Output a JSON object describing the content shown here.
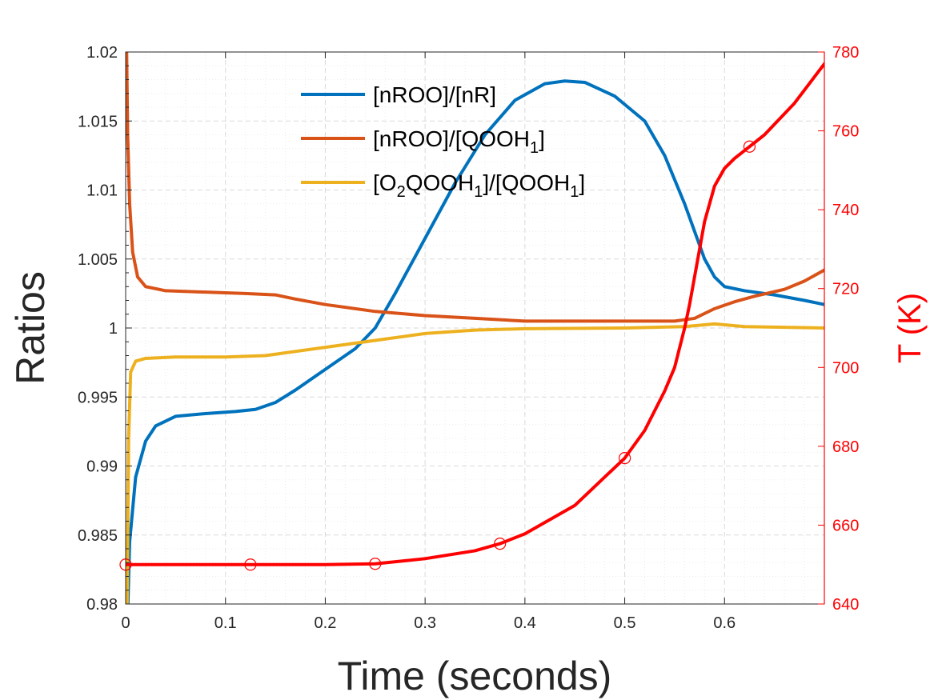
{
  "chart_data": {
    "type": "line",
    "title": "",
    "xlabel": "Time (seconds)",
    "ylabel": "Ratios",
    "ylabel_right": "T (K)",
    "xlim": [
      0,
      0.7
    ],
    "ylim": [
      0.98,
      1.02
    ],
    "ylim_right": [
      640,
      780
    ],
    "xticks": [
      "0",
      "0.1",
      "0.2",
      "0.3",
      "0.4",
      "0.5",
      "0.6"
    ],
    "yticks": [
      "0.98",
      "0.985",
      "0.99",
      "0.995",
      "1",
      "1.005",
      "1.01",
      "1.015",
      "1.02"
    ],
    "yticks_right": [
      "640",
      "660",
      "680",
      "700",
      "720",
      "740",
      "760",
      "780"
    ],
    "grid": true,
    "legend": {
      "placement": "top-center",
      "items": [
        {
          "base": "[nROO]/[nR]",
          "segments": [
            {
              "t": "[nROO]/[nR]",
              "s": false
            }
          ]
        },
        {
          "base": "[nROO]/[QOOH1]",
          "segments": [
            {
              "t": "[nROO]/[QOOH",
              "s": false
            },
            {
              "t": "1",
              "s": true
            },
            {
              "t": "]",
              "s": false
            }
          ]
        },
        {
          "base": "[O2QOOH1]/[QOOH1]",
          "segments": [
            {
              "t": "[O",
              "s": false
            },
            {
              "t": "2",
              "s": true
            },
            {
              "t": "QOOH",
              "s": false
            },
            {
              "t": "1",
              "s": true
            },
            {
              "t": "]/[QOOH",
              "s": false
            },
            {
              "t": "1",
              "s": true
            },
            {
              "t": "]",
              "s": false
            }
          ]
        }
      ]
    },
    "series": [
      {
        "name": "[nROO]/[nR]",
        "axis": "left",
        "color": "#0072BD",
        "points": [
          [
            0.0015,
            0.978
          ],
          [
            0.004,
            0.9845
          ],
          [
            0.01,
            0.9892
          ],
          [
            0.02,
            0.9918
          ],
          [
            0.03,
            0.9929
          ],
          [
            0.05,
            0.9936
          ],
          [
            0.08,
            0.9938
          ],
          [
            0.11,
            0.99395
          ],
          [
            0.13,
            0.9941
          ],
          [
            0.15,
            0.9946
          ],
          [
            0.17,
            0.9955
          ],
          [
            0.2,
            0.997
          ],
          [
            0.23,
            0.9985
          ],
          [
            0.25,
            1.0
          ],
          [
            0.27,
            1.0025
          ],
          [
            0.3,
            1.0065
          ],
          [
            0.33,
            1.0105
          ],
          [
            0.36,
            1.014
          ],
          [
            0.39,
            1.0165
          ],
          [
            0.42,
            1.0177
          ],
          [
            0.44,
            1.0179
          ],
          [
            0.46,
            1.0178
          ],
          [
            0.49,
            1.0168
          ],
          [
            0.52,
            1.015
          ],
          [
            0.54,
            1.0125
          ],
          [
            0.56,
            1.009
          ],
          [
            0.57,
            1.007
          ],
          [
            0.58,
            1.005
          ],
          [
            0.59,
            1.0037
          ],
          [
            0.6,
            1.003
          ],
          [
            0.62,
            1.0027
          ],
          [
            0.65,
            1.0024
          ],
          [
            0.68,
            1.002
          ],
          [
            0.7,
            1.0017
          ]
        ]
      },
      {
        "name": "[nROO]/[QOOH1]",
        "axis": "left",
        "color": "#D95319",
        "points": [
          [
            0.001,
            1.02
          ],
          [
            0.002,
            1.014
          ],
          [
            0.004,
            1.009
          ],
          [
            0.007,
            1.0055
          ],
          [
            0.012,
            1.0037
          ],
          [
            0.02,
            1.003
          ],
          [
            0.04,
            1.0027
          ],
          [
            0.08,
            1.0026
          ],
          [
            0.12,
            1.0025
          ],
          [
            0.15,
            1.0024
          ],
          [
            0.17,
            1.0021
          ],
          [
            0.2,
            1.0017
          ],
          [
            0.25,
            1.0012
          ],
          [
            0.3,
            1.0009
          ],
          [
            0.35,
            1.0007
          ],
          [
            0.4,
            1.0005
          ],
          [
            0.45,
            1.0005
          ],
          [
            0.5,
            1.0005
          ],
          [
            0.55,
            1.0005
          ],
          [
            0.57,
            1.0007
          ],
          [
            0.59,
            1.0014
          ],
          [
            0.61,
            1.0019
          ],
          [
            0.63,
            1.0023
          ],
          [
            0.66,
            1.0028
          ],
          [
            0.68,
            1.0034
          ],
          [
            0.7,
            1.0042
          ]
        ]
      },
      {
        "name": "[O2QOOH1]/[QOOH1]",
        "axis": "left",
        "color": "#EDB120",
        "points": [
          [
            0.0015,
            0.98
          ],
          [
            0.003,
            0.992
          ],
          [
            0.005,
            0.9968
          ],
          [
            0.01,
            0.9976
          ],
          [
            0.02,
            0.9978
          ],
          [
            0.05,
            0.9979
          ],
          [
            0.1,
            0.9979
          ],
          [
            0.14,
            0.998
          ],
          [
            0.2,
            0.9986
          ],
          [
            0.25,
            0.9991
          ],
          [
            0.3,
            0.9996
          ],
          [
            0.35,
            0.99985
          ],
          [
            0.4,
            0.99995
          ],
          [
            0.5,
            1.0
          ],
          [
            0.56,
            1.0001
          ],
          [
            0.59,
            1.0003
          ],
          [
            0.62,
            1.0001
          ],
          [
            0.7,
            1.0
          ]
        ]
      },
      {
        "name": "T",
        "axis": "right",
        "color": "#FF0000",
        "points": [
          [
            0.0,
            650
          ],
          [
            0.1,
            650
          ],
          [
            0.2,
            650
          ],
          [
            0.25,
            650.2
          ],
          [
            0.3,
            651.5
          ],
          [
            0.35,
            653.5
          ],
          [
            0.375,
            655.3
          ],
          [
            0.4,
            657.8
          ],
          [
            0.45,
            665
          ],
          [
            0.5,
            677
          ],
          [
            0.52,
            684
          ],
          [
            0.54,
            694
          ],
          [
            0.55,
            700
          ],
          [
            0.56,
            710
          ],
          [
            0.565,
            716
          ],
          [
            0.57,
            723
          ],
          [
            0.58,
            737
          ],
          [
            0.59,
            746
          ],
          [
            0.6,
            750.5
          ],
          [
            0.61,
            753
          ],
          [
            0.625,
            756
          ],
          [
            0.64,
            759
          ],
          [
            0.67,
            767
          ],
          [
            0.7,
            777
          ]
        ],
        "markers": [
          [
            0,
            650
          ],
          [
            0.125,
            650
          ],
          [
            0.25,
            650.2
          ],
          [
            0.375,
            655.3
          ],
          [
            0.5,
            677
          ],
          [
            0.625,
            756
          ]
        ]
      }
    ]
  }
}
